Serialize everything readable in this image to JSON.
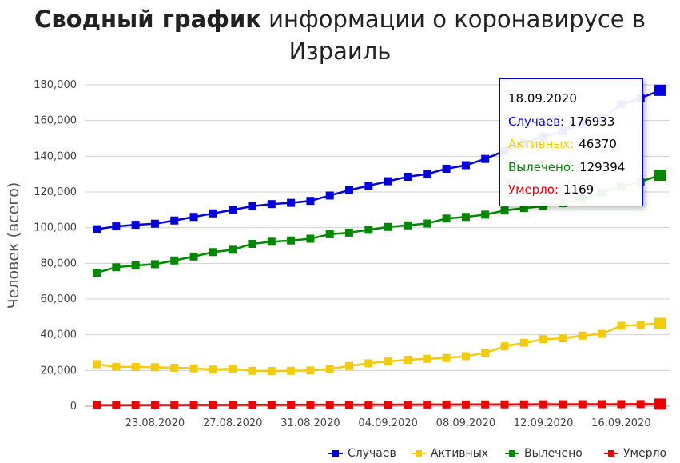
{
  "title": {
    "bold": "Сводный график",
    "rest": " информации о коронавирусе в Израиль"
  },
  "chart_data": {
    "type": "line",
    "ylabel": "Человек (всего)",
    "ylim": [
      0,
      180000
    ],
    "yticks": [
      "0",
      "20,000",
      "40,000",
      "60,000",
      "80,000",
      "100,000",
      "120,000",
      "140,000",
      "160,000",
      "180,000"
    ],
    "xtick_labels": [
      "23.08.2020",
      "27.08.2020",
      "31.08.2020",
      "04.09.2020",
      "08.09.2020",
      "12.09.2020",
      "16.09.2020"
    ],
    "x": [
      "20.08.2020",
      "21.08.2020",
      "22.08.2020",
      "23.08.2020",
      "24.08.2020",
      "25.08.2020",
      "26.08.2020",
      "27.08.2020",
      "28.08.2020",
      "29.08.2020",
      "30.08.2020",
      "31.08.2020",
      "01.09.2020",
      "02.09.2020",
      "03.09.2020",
      "04.09.2020",
      "05.09.2020",
      "06.09.2020",
      "07.09.2020",
      "08.09.2020",
      "09.09.2020",
      "10.09.2020",
      "11.09.2020",
      "12.09.2020",
      "13.09.2020",
      "14.09.2020",
      "15.09.2020",
      "16.09.2020",
      "17.09.2020",
      "18.09.2020"
    ],
    "grid": true,
    "legend_position": "bottom-right",
    "series": [
      {
        "name": "Случаев",
        "color": "#0000dd",
        "values": [
          99100,
          100700,
          101600,
          102200,
          104000,
          106000,
          108000,
          110000,
          112000,
          113200,
          113900,
          115000,
          118000,
          121000,
          123500,
          126000,
          128500,
          130000,
          133000,
          135000,
          138500,
          143000,
          147500,
          151000,
          154000,
          158000,
          161000,
          169000,
          172500,
          176933
        ]
      },
      {
        "name": "Активных",
        "color": "#f2cc0c",
        "values": [
          23500,
          22000,
          22000,
          21800,
          21500,
          21200,
          20500,
          21000,
          19800,
          19700,
          19800,
          20000,
          20800,
          22500,
          24000,
          25000,
          26000,
          26500,
          27000,
          28000,
          29800,
          33500,
          35500,
          37500,
          38000,
          39500,
          40500,
          45000,
          45500,
          46370
        ]
      },
      {
        "name": "Вылечено",
        "color": "#008800",
        "values": [
          74700,
          77800,
          78800,
          79500,
          81600,
          83800,
          86300,
          87600,
          90900,
          92100,
          92800,
          93800,
          96300,
          97200,
          98800,
          100400,
          101300,
          102300,
          105100,
          106000,
          107300,
          109600,
          111000,
          112000,
          113700,
          116000,
          119600,
          122900,
          125800,
          129394
        ]
      },
      {
        "name": "Умерло",
        "color": "#ee0000",
        "values": [
          600,
          620,
          640,
          660,
          680,
          700,
          720,
          740,
          760,
          780,
          800,
          820,
          840,
          860,
          880,
          900,
          920,
          940,
          960,
          980,
          1000,
          1020,
          1040,
          1060,
          1080,
          1100,
          1120,
          1140,
          1155,
          1169
        ]
      }
    ]
  },
  "tooltip": {
    "date": "18.09.2020",
    "rows": [
      {
        "label": "Случаев:",
        "value": "176933",
        "color": "#0000dd"
      },
      {
        "label": "Активных:",
        "value": "46370",
        "color": "#f2cc0c"
      },
      {
        "label": "Вылечено:",
        "value": "129394",
        "color": "#008800"
      },
      {
        "label": "Умерло:",
        "value": "1169",
        "color": "#ee0000"
      }
    ]
  }
}
